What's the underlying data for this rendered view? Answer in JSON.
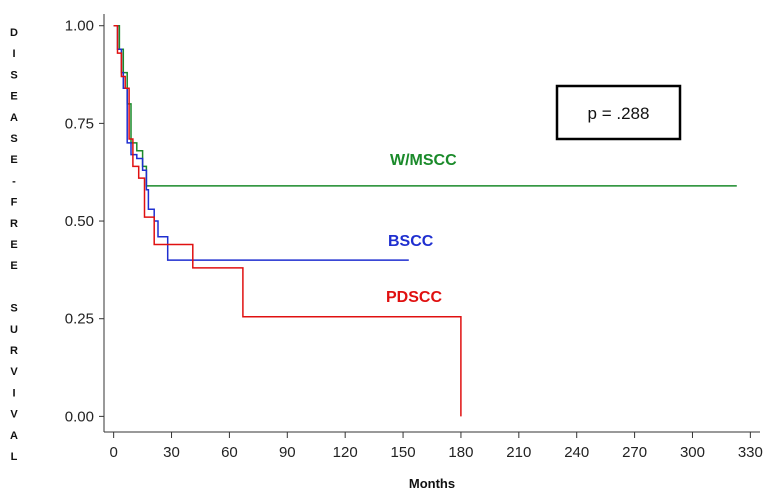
{
  "chart_data": {
    "type": "line",
    "subtype": "kaplan-meier step",
    "xlabel": "Months",
    "ylabel": "DISEASE-FREE SURVIVAL",
    "xlim": [
      -5,
      335
    ],
    "ylim": [
      -0.04,
      1.03
    ],
    "xticks": [
      0,
      30,
      60,
      90,
      120,
      150,
      180,
      210,
      240,
      270,
      300,
      330
    ],
    "yticks": [
      0.0,
      0.25,
      0.5,
      0.75,
      1.0
    ],
    "ytick_labels": [
      "0.00",
      "0.25",
      "0.50",
      "0.75",
      "1.00"
    ],
    "grid": false,
    "annotation": "p = .288",
    "series": [
      {
        "name": "W/MSCC",
        "color": "#1a8a2a",
        "points": [
          [
            0,
            1.0
          ],
          [
            3,
            1.0
          ],
          [
            3,
            0.94
          ],
          [
            5,
            0.94
          ],
          [
            5,
            0.88
          ],
          [
            7,
            0.88
          ],
          [
            7,
            0.8
          ],
          [
            9,
            0.8
          ],
          [
            9,
            0.7
          ],
          [
            12,
            0.7
          ],
          [
            12,
            0.68
          ],
          [
            15,
            0.68
          ],
          [
            15,
            0.64
          ],
          [
            17,
            0.64
          ],
          [
            17,
            0.59
          ],
          [
            323,
            0.59
          ]
        ]
      },
      {
        "name": "BSCC",
        "color": "#1f2fd0",
        "points": [
          [
            0,
            1.0
          ],
          [
            2,
            1.0
          ],
          [
            2,
            0.94
          ],
          [
            4,
            0.94
          ],
          [
            4,
            0.88
          ],
          [
            5,
            0.88
          ],
          [
            5,
            0.84
          ],
          [
            7,
            0.84
          ],
          [
            7,
            0.7
          ],
          [
            9,
            0.7
          ],
          [
            9,
            0.67
          ],
          [
            12,
            0.67
          ],
          [
            12,
            0.66
          ],
          [
            15,
            0.66
          ],
          [
            15,
            0.63
          ],
          [
            17,
            0.63
          ],
          [
            17,
            0.58
          ],
          [
            18,
            0.58
          ],
          [
            18,
            0.53
          ],
          [
            21,
            0.53
          ],
          [
            21,
            0.5
          ],
          [
            23,
            0.5
          ],
          [
            23,
            0.46
          ],
          [
            28,
            0.46
          ],
          [
            28,
            0.4
          ],
          [
            153,
            0.4
          ]
        ]
      },
      {
        "name": "PDSCC",
        "color": "#e01010",
        "points": [
          [
            0,
            1.0
          ],
          [
            2,
            1.0
          ],
          [
            2,
            0.93
          ],
          [
            4,
            0.93
          ],
          [
            4,
            0.87
          ],
          [
            6,
            0.87
          ],
          [
            6,
            0.84
          ],
          [
            8,
            0.84
          ],
          [
            8,
            0.71
          ],
          [
            10,
            0.71
          ],
          [
            10,
            0.64
          ],
          [
            13,
            0.64
          ],
          [
            13,
            0.61
          ],
          [
            16,
            0.61
          ],
          [
            16,
            0.51
          ],
          [
            21,
            0.51
          ],
          [
            21,
            0.44
          ],
          [
            41,
            0.44
          ],
          [
            41,
            0.38
          ],
          [
            67,
            0.38
          ],
          [
            67,
            0.255
          ],
          [
            180,
            0.255
          ],
          [
            180,
            0.0
          ]
        ]
      }
    ]
  }
}
